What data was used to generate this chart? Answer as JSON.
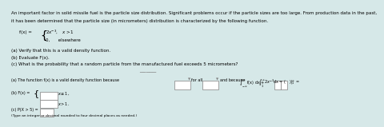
{
  "bg_color": "#d6e8e8",
  "text_color": "#000000",
  "title_lines": [
    "An important factor in solid missile fuel is the particle size distribution. Significant problems occur if the particle sizes are too large. From production data in the past,",
    "it has been determined that the particle size (in micrometers) distribution is characterized by the following function."
  ],
  "fx_label": "f(x) =",
  "fx_case1": "2x⁻³,   x > 1",
  "fx_case2": "0,      elsewhere",
  "questions": [
    "(a) Verify that this is a valid density function.",
    "(b) Evaluate F(x).",
    "(c) What is the probability that a random particle from the manufactured fuel exceeds 5 micrometers?"
  ],
  "divider_color": "#aaaaaa",
  "answer_a": "(a) The function f(x) is a valid density function because",
  "answer_a2": "for all",
  "answer_a3": "and because",
  "answer_a4": "∫ f(x) dx +",
  "answer_a5": "∫ 2x⁻³dx = (   )|₁∞ =",
  "answer_b": "(b) F(x) =",
  "answer_b1": "x ≤ 1,",
  "answer_b2": "x > 1.",
  "answer_c": "(c) P(X > 5) =",
  "answer_c2": "(Type an integer or decimal rounded to four decimal places as needed.)"
}
